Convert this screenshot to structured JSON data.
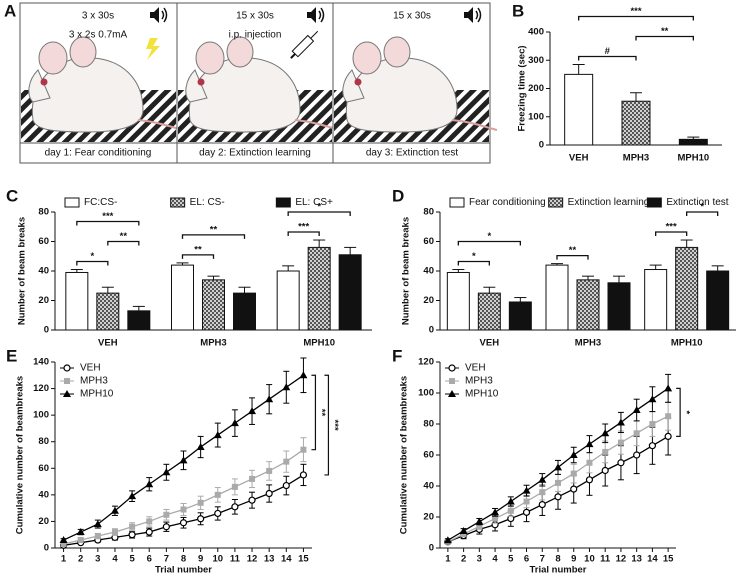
{
  "protocol": {
    "panel": "A",
    "steps": [
      {
        "sessions": "3 x 30s",
        "treatment": "3 x 2s 0.7mA",
        "caption": "day 1: Fear conditioning"
      },
      {
        "sessions": "15 x 30s",
        "treatment": "i.p. injection",
        "caption": "day 2: Extinction learning"
      },
      {
        "sessions": "15 x 30s",
        "caption": "day 3: Extinction test"
      }
    ]
  },
  "chart_data": [
    {
      "type": "bar",
      "panel": "B",
      "ylabel": "Freezing time (sec)",
      "categories": [
        "VEH",
        "MPH3",
        "MPH10"
      ],
      "values": [
        250,
        155,
        20
      ],
      "errors": [
        35,
        30,
        8
      ],
      "colors": [
        "#ffffff",
        "hatch",
        "#111111"
      ],
      "ylim": [
        0,
        400
      ],
      "yticks": [
        0,
        100,
        200,
        300,
        400
      ],
      "grid": false,
      "annotations": [
        {
          "between": [
            "VEH",
            "MPH3"
          ],
          "text": "#"
        },
        {
          "between": [
            "MPH3",
            "MPH10"
          ],
          "text": "**"
        },
        {
          "between": [
            "VEH",
            "MPH10"
          ],
          "text": "***"
        }
      ]
    },
    {
      "type": "bar",
      "panel": "C",
      "ylabel": "Number of beam breaks",
      "categories": [
        "VEH",
        "MPH3",
        "MPH10"
      ],
      "series": [
        {
          "name": "FC:CS-",
          "color": "#ffffff",
          "values": [
            39,
            44,
            40
          ],
          "errors": [
            2,
            1.5,
            3.5
          ]
        },
        {
          "name": "EL: CS-",
          "color": "hatch",
          "values": [
            25,
            34,
            56
          ],
          "errors": [
            4,
            2.5,
            5
          ]
        },
        {
          "name": "EL: CS+",
          "color": "#111111",
          "values": [
            13,
            25,
            51
          ],
          "errors": [
            3,
            4,
            5
          ]
        }
      ],
      "ylim": [
        0,
        80
      ],
      "yticks": [
        0,
        20,
        40,
        60,
        80
      ],
      "grid": false,
      "annotations": [
        {
          "category": "VEH",
          "between": [
            "FC:CS-",
            "EL: CS-"
          ],
          "text": "*"
        },
        {
          "category": "VEH",
          "between": [
            "EL: CS-",
            "EL: CS+"
          ],
          "text": "**"
        },
        {
          "category": "VEH",
          "between": [
            "FC:CS-",
            "EL: CS+"
          ],
          "text": "***"
        },
        {
          "category": "MPH3",
          "between": [
            "FC:CS-",
            "EL: CS-"
          ],
          "text": "**"
        },
        {
          "category": "MPH3",
          "between": [
            "FC:CS-",
            "EL: CS+"
          ],
          "text": "**"
        },
        {
          "category": "MPH10",
          "between": [
            "FC:CS-",
            "EL: CS-"
          ],
          "text": "***"
        },
        {
          "category": "MPH10",
          "between": [
            "FC:CS-",
            "EL: CS+"
          ],
          "text": "*"
        }
      ]
    },
    {
      "type": "bar",
      "panel": "D",
      "ylabel": "Number of beam breaks",
      "categories": [
        "VEH",
        "MPH3",
        "MPH10"
      ],
      "series": [
        {
          "name": "Fear conditioning",
          "color": "#ffffff",
          "values": [
            39,
            44,
            41
          ],
          "errors": [
            2,
            1,
            3
          ]
        },
        {
          "name": "Extinction learning",
          "color": "hatch",
          "values": [
            25,
            34,
            56
          ],
          "errors": [
            4,
            2.5,
            5
          ]
        },
        {
          "name": "Extinction test",
          "color": "#111111",
          "values": [
            19,
            32,
            40
          ],
          "errors": [
            3,
            4.5,
            3.5
          ]
        }
      ],
      "ylim": [
        0,
        80
      ],
      "yticks": [
        0,
        20,
        40,
        60,
        80
      ],
      "grid": false,
      "annotations": [
        {
          "category": "VEH",
          "between": [
            "Fear conditioning",
            "Extinction learning"
          ],
          "text": "*"
        },
        {
          "category": "VEH",
          "between": [
            "Fear conditioning",
            "Extinction test"
          ],
          "text": "*"
        },
        {
          "category": "MPH3",
          "between": [
            "Fear conditioning",
            "Extinction learning"
          ],
          "text": "**"
        },
        {
          "category": "MPH10",
          "between": [
            "Fear conditioning",
            "Extinction learning"
          ],
          "text": "***"
        },
        {
          "category": "MPH10",
          "between": [
            "Extinction learning",
            "Extinction test"
          ],
          "text": "*"
        }
      ]
    },
    {
      "type": "line",
      "panel": "E",
      "xlabel": "Trial number",
      "ylabel": "Cumulative number of beambreaks",
      "x": [
        1,
        2,
        3,
        4,
        5,
        6,
        7,
        8,
        9,
        10,
        11,
        12,
        13,
        14,
        15
      ],
      "series": [
        {
          "name": "VEH",
          "color": "#000000",
          "marker": "circle-open",
          "values": [
            2,
            4,
            6,
            8,
            10,
            12,
            16,
            19,
            22,
            26,
            31,
            36,
            41,
            47,
            55
          ],
          "errors": [
            0.5,
            1,
            1.5,
            2,
            2.5,
            3,
            3.5,
            4,
            4.5,
            5,
            5.5,
            6,
            6.5,
            7,
            8
          ]
        },
        {
          "name": "MPH3",
          "color": "#aaaaaa",
          "marker": "square",
          "values": [
            3,
            6,
            9,
            12,
            16,
            20,
            25,
            29,
            34,
            40,
            46,
            52,
            58,
            65,
            74
          ],
          "errors": [
            1,
            1.5,
            2,
            2.5,
            3,
            3.5,
            4,
            4.5,
            5,
            5.5,
            6,
            6.5,
            7,
            8,
            9
          ]
        },
        {
          "name": "MPH10",
          "color": "#000000",
          "marker": "triangle",
          "values": [
            6,
            12,
            18,
            28,
            39,
            48,
            57,
            66,
            76,
            85,
            94,
            103,
            112,
            121,
            130
          ],
          "errors": [
            1,
            2,
            3,
            3.5,
            4,
            5,
            6,
            7,
            8,
            9,
            10,
            10,
            11,
            12,
            13
          ]
        }
      ],
      "xlim": [
        0.5,
        15.5
      ],
      "xticks": [
        1,
        2,
        3,
        4,
        5,
        6,
        7,
        8,
        9,
        10,
        11,
        12,
        13,
        14,
        15
      ],
      "ylim": [
        0,
        140
      ],
      "yticks": [
        0,
        20,
        40,
        60,
        80,
        100,
        120,
        140
      ],
      "grid": false,
      "legend": "top-left",
      "annotations": [
        {
          "between": [
            "MPH3",
            "MPH10"
          ],
          "text": "**"
        },
        {
          "between": [
            "VEH",
            "MPH10"
          ],
          "text": "***"
        }
      ]
    },
    {
      "type": "line",
      "panel": "F",
      "xlabel": "Trial number",
      "ylabel": "Cumulative number of beambreaks",
      "x": [
        1,
        2,
        3,
        4,
        5,
        6,
        7,
        8,
        9,
        10,
        11,
        12,
        13,
        14,
        15
      ],
      "series": [
        {
          "name": "VEH",
          "color": "#000000",
          "marker": "circle-open",
          "values": [
            4,
            8,
            12,
            15,
            19,
            23,
            28,
            33,
            38,
            44,
            50,
            55,
            60,
            66,
            72
          ],
          "errors": [
            1,
            2,
            3,
            4,
            5,
            6,
            7,
            8,
            9,
            10,
            10,
            11,
            12,
            12,
            12
          ]
        },
        {
          "name": "MPH3",
          "color": "#aaaaaa",
          "marker": "square",
          "values": [
            4,
            9,
            14,
            19,
            24,
            30,
            36,
            42,
            48,
            55,
            62,
            68,
            74,
            80,
            85
          ],
          "errors": [
            1,
            1.5,
            2,
            3,
            3.5,
            4,
            5,
            5.5,
            6,
            6.5,
            7,
            7.5,
            8,
            8,
            9
          ]
        },
        {
          "name": "MPH10",
          "color": "#000000",
          "marker": "triangle",
          "values": [
            5,
            11,
            17,
            23,
            30,
            37,
            44,
            52,
            60,
            67,
            74,
            81,
            89,
            96,
            103
          ],
          "errors": [
            1,
            1.5,
            2,
            2.5,
            3,
            3.5,
            4,
            4.5,
            5,
            5.5,
            6,
            6.5,
            7,
            8,
            9
          ]
        }
      ],
      "xlim": [
        0.5,
        15.5
      ],
      "xticks": [
        1,
        2,
        3,
        4,
        5,
        6,
        7,
        8,
        9,
        10,
        11,
        12,
        13,
        14,
        15
      ],
      "ylim": [
        0,
        120
      ],
      "yticks": [
        0,
        20,
        40,
        60,
        80,
        100,
        120
      ],
      "grid": false,
      "legend": "top-left",
      "annotations": [
        {
          "between": [
            "VEH",
            "MPH10"
          ],
          "text": "*"
        }
      ]
    }
  ]
}
